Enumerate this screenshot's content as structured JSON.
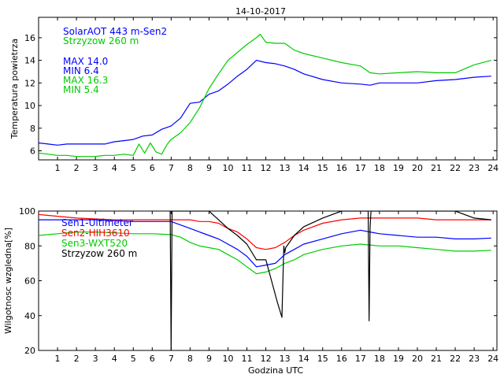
{
  "page_title": "14-10-2017",
  "chart_data": [
    {
      "type": "line",
      "title": "14-10-2017",
      "xlabel": "",
      "ylabel": "Temperatura powietrza",
      "xlim": [
        0,
        24.2
      ],
      "ylim": [
        5.2,
        17.8
      ],
      "xticks": [
        1,
        2,
        3,
        4,
        5,
        6,
        7,
        8,
        9,
        10,
        11,
        12,
        13,
        14,
        15,
        16,
        17,
        18,
        19,
        20,
        21,
        22,
        23,
        24
      ],
      "yticks": [
        6,
        8,
        10,
        12,
        14,
        16
      ],
      "legend": [
        {
          "text": "SolarAOT 443 m-Sen2",
          "color": "#0000ff"
        },
        {
          "text": "Strzyzow 260 m",
          "color": "#00cc00"
        }
      ],
      "stats": [
        {
          "text": "MAX 14.0",
          "color": "#0000ff"
        },
        {
          "text": "MIN 6.4",
          "color": "#0000ff"
        },
        {
          "text": "MAX 16.3",
          "color": "#00cc00"
        },
        {
          "text": "MIN 5.4",
          "color": "#00cc00"
        }
      ],
      "series": [
        {
          "name": "SolarAOT 443 m-Sen2",
          "color": "#0000ff",
          "x": [
            0,
            0.5,
            1,
            1.5,
            2,
            2.5,
            3,
            3.5,
            4,
            4.5,
            5,
            5.5,
            6,
            6.5,
            7,
            7.5,
            8,
            8.5,
            9,
            9.5,
            10,
            10.5,
            11,
            11.5,
            12,
            12.5,
            13,
            13.5,
            14,
            15,
            16,
            17,
            17.5,
            18,
            19,
            20,
            21,
            22,
            23,
            23.9
          ],
          "y": [
            6.7,
            6.6,
            6.5,
            6.6,
            6.6,
            6.6,
            6.6,
            6.6,
            6.8,
            6.9,
            7.0,
            7.3,
            7.4,
            7.9,
            8.2,
            8.9,
            10.2,
            10.3,
            11.0,
            11.3,
            11.9,
            12.6,
            13.2,
            14.0,
            13.8,
            13.7,
            13.5,
            13.2,
            12.8,
            12.3,
            12.0,
            11.9,
            11.8,
            12.0,
            12.0,
            12.0,
            12.2,
            12.3,
            12.5,
            12.6
          ]
        },
        {
          "name": "Strzyzow 260 m",
          "color": "#00cc00",
          "x": [
            0,
            0.5,
            1,
            1.5,
            2,
            2.5,
            3,
            3.5,
            4,
            4.5,
            5,
            5.3,
            5.6,
            5.9,
            6.2,
            6.5,
            6.8,
            7,
            7.5,
            8,
            8.5,
            9,
            9.5,
            10,
            10.5,
            11,
            11.5,
            11.7,
            12,
            12.5,
            13,
            13.5,
            14,
            15,
            16,
            17,
            17.5,
            18,
            19,
            20,
            21,
            22,
            23,
            23.9
          ],
          "y": [
            5.8,
            5.7,
            5.6,
            5.6,
            5.5,
            5.5,
            5.5,
            5.6,
            5.6,
            5.7,
            5.6,
            6.6,
            5.8,
            6.7,
            5.9,
            5.7,
            6.6,
            7.0,
            7.6,
            8.5,
            9.8,
            11.5,
            12.8,
            14.0,
            14.7,
            15.4,
            16.0,
            16.3,
            15.6,
            15.5,
            15.5,
            14.9,
            14.6,
            14.2,
            13.8,
            13.5,
            12.9,
            12.8,
            12.9,
            13.0,
            12.9,
            12.9,
            13.6,
            14.0
          ]
        }
      ]
    },
    {
      "type": "line",
      "title": "",
      "xlabel": "Godzina UTC",
      "ylabel": "Wilgotnosc wzgledna[%]",
      "xlim": [
        0,
        24.2
      ],
      "ylim": [
        20,
        100
      ],
      "xticks": [
        1,
        2,
        3,
        4,
        5,
        6,
        7,
        8,
        9,
        10,
        11,
        12,
        13,
        14,
        15,
        16,
        17,
        18,
        19,
        20,
        21,
        22,
        23,
        24
      ],
      "yticks": [
        20,
        40,
        60,
        80,
        100
      ],
      "legend": [
        {
          "text": "Sen1-Ultimeter",
          "color": "#0000ff"
        },
        {
          "text": "Sen2-HIH3610",
          "color": "#ff0000"
        },
        {
          "text": "Sen3-WXT520",
          "color": "#00cc00"
        },
        {
          "text": "Strzyzow 260 m",
          "color": "#000000"
        }
      ],
      "series": [
        {
          "name": "Sen1-Ultimeter",
          "color": "#0000ff",
          "x": [
            0,
            1,
            2,
            3,
            4,
            5,
            6,
            7,
            7.5,
            8,
            8.5,
            9,
            9.5,
            10,
            10.5,
            11,
            11.5,
            12,
            12.5,
            13,
            13.5,
            14,
            15,
            16,
            17,
            17.5,
            18,
            19,
            20,
            21,
            22,
            23,
            23.9
          ],
          "y": [
            95,
            95,
            95,
            95,
            94.5,
            94,
            94,
            94,
            92,
            90,
            88,
            86,
            84,
            81,
            78,
            74,
            68,
            69,
            70,
            75,
            78,
            81,
            84,
            87,
            89,
            88,
            87,
            86,
            85,
            85,
            84,
            84,
            84.5
          ]
        },
        {
          "name": "Sen2-HIH3610",
          "color": "#ff0000",
          "x": [
            0,
            1,
            2,
            3,
            4,
            5,
            6,
            7,
            8,
            8.5,
            9,
            9.5,
            10,
            10.5,
            11,
            11.5,
            12,
            12.5,
            13,
            13.5,
            14,
            15,
            16,
            17,
            18,
            19,
            20,
            21,
            22,
            23,
            23.9
          ],
          "y": [
            98,
            97,
            96,
            95.5,
            95,
            95,
            95,
            95,
            95,
            94,
            94,
            93,
            90,
            88,
            84,
            79,
            78,
            79,
            82,
            86,
            89,
            93,
            95,
            96,
            96,
            96,
            96,
            95,
            95,
            95,
            95
          ]
        },
        {
          "name": "Sen3-WXT520",
          "color": "#00cc00",
          "x": [
            0,
            1,
            2,
            3,
            4,
            5,
            6,
            7,
            7.5,
            8,
            8.5,
            9,
            9.5,
            10,
            10.5,
            11,
            11.5,
            12,
            12.5,
            13,
            13.5,
            14,
            15,
            16,
            17,
            18,
            19,
            20,
            21,
            22,
            23,
            23.9
          ],
          "y": [
            86,
            87,
            88,
            88,
            87.5,
            87,
            87,
            86.5,
            85,
            82,
            80,
            79,
            78,
            75,
            72,
            68,
            64,
            65,
            67,
            70,
            72,
            75,
            78,
            80,
            81,
            80,
            80,
            79,
            78,
            77,
            77,
            77.5
          ]
        },
        {
          "name": "Strzyzow 260 m",
          "color": "#000000",
          "x": [
            6.95,
            7.0,
            7.05,
            7.1,
            7.5,
            8,
            8.5,
            9,
            9.5,
            10,
            10.5,
            11,
            11.5,
            12,
            12.3,
            12.6,
            12.85,
            12.95,
            13.0,
            13.05,
            13.5,
            14,
            15,
            16,
            17,
            17.4,
            17.45,
            17.5,
            17.55,
            17.6,
            18,
            18.5,
            19,
            20,
            21,
            22,
            23,
            23.9
          ],
          "y": [
            100,
            20,
            100,
            100,
            100,
            100,
            100,
            100,
            95,
            90,
            86,
            81,
            72,
            72,
            60,
            48,
            39,
            80,
            76,
            79,
            86,
            91,
            96,
            100,
            100,
            100,
            37,
            90,
            100,
            100,
            100,
            100,
            100,
            100,
            100,
            100,
            96,
            95
          ]
        }
      ]
    }
  ]
}
